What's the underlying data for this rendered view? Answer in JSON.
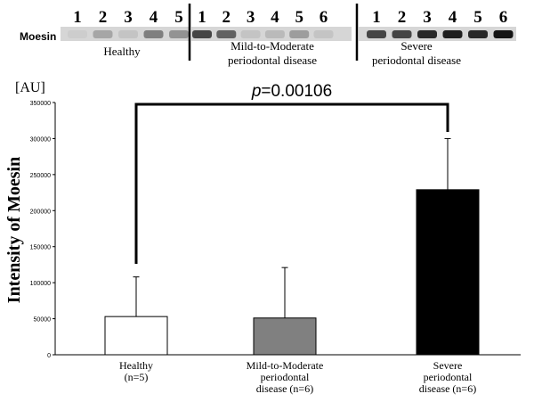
{
  "blot": {
    "row_label": "Moesin",
    "groups": [
      {
        "name": "Healthy",
        "lanes": [
          "1",
          "2",
          "3",
          "4",
          "5"
        ],
        "intensity": [
          0.05,
          0.25,
          0.1,
          0.45,
          0.35
        ]
      },
      {
        "name": "Mild-to-Moderate\nperiodontal  disease",
        "lanes": [
          "1",
          "2",
          "3",
          "4",
          "5",
          "6"
        ],
        "intensity": [
          0.75,
          0.6,
          0.1,
          0.15,
          0.3,
          0.1
        ]
      },
      {
        "name": "Severe\nperiodontal disease",
        "lanes": [
          "1",
          "2",
          "3",
          "4",
          "5",
          "6"
        ],
        "intensity": [
          0.75,
          0.75,
          0.9,
          0.95,
          0.9,
          1.0
        ]
      }
    ]
  },
  "chart_data": {
    "type": "bar",
    "unit_label": "[AU]",
    "ylabel": "Intensity of Moesin",
    "ylim": [
      0,
      350000
    ],
    "yticks": [
      "0",
      "50000",
      "100000",
      "150000",
      "200000",
      "250000",
      "300000",
      "350000"
    ],
    "categories": [
      "Healthy\n(n=5)",
      "Mild-to-Moderate\nperiodontal\ndisease (n=6)",
      "Severe\nperiodontal\ndisease  (n=6)"
    ],
    "values": [
      53000,
      51000,
      229000
    ],
    "errors": [
      55000,
      70000,
      71000
    ],
    "colors": [
      "#ffffff",
      "#808080",
      "#000000"
    ],
    "annotation": {
      "p_symbol": "p",
      "p_value": "=0.00106",
      "from": 0,
      "to": 2
    },
    "grid": false
  }
}
